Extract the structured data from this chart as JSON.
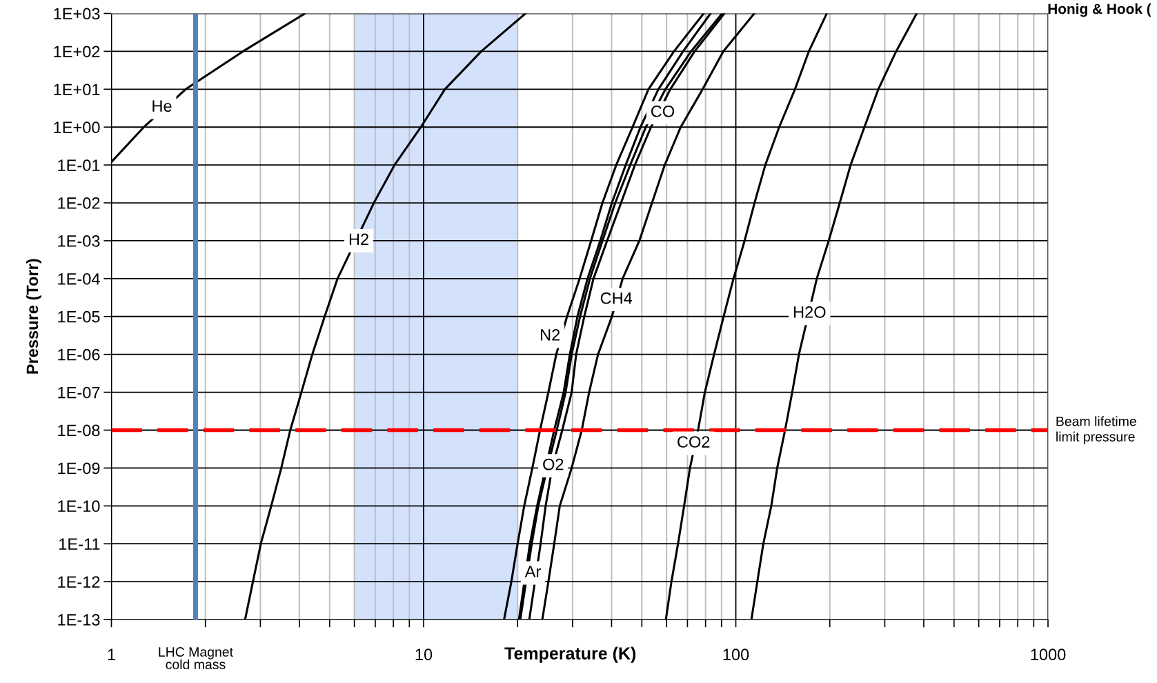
{
  "chart_data": {
    "type": "line",
    "log": "xy",
    "xlabel": "Temperature (K)",
    "ylabel": "Pressure (Torr)",
    "xlim": [
      1,
      1000
    ],
    "ylim": [
      1e-13,
      1000
    ],
    "xticks": [
      1,
      {
        "value": 2,
        "label": null
      },
      {
        "value": 3,
        "label": null
      },
      {
        "value": 4,
        "label": null
      },
      {
        "value": 5,
        "label": null
      },
      {
        "value": 6,
        "label": null
      },
      {
        "value": 7,
        "label": null
      },
      {
        "value": 8,
        "label": null
      },
      {
        "value": 9,
        "label": null
      },
      10,
      {
        "value": 20,
        "label": null
      },
      {
        "value": 30,
        "label": null
      },
      {
        "value": 40,
        "label": null
      },
      {
        "value": 50,
        "label": null
      },
      {
        "value": 60,
        "label": null
      },
      {
        "value": 70,
        "label": null
      },
      {
        "value": 80,
        "label": null
      },
      {
        "value": 90,
        "label": null
      },
      100,
      {
        "value": 200,
        "label": null
      },
      {
        "value": 300,
        "label": null
      },
      {
        "value": 400,
        "label": null
      },
      {
        "value": 500,
        "label": null
      },
      {
        "value": 600,
        "label": null
      },
      {
        "value": 700,
        "label": null
      },
      {
        "value": 800,
        "label": null
      },
      {
        "value": 900,
        "label": null
      },
      1000
    ],
    "yticks": [
      {
        "value": 1e-13,
        "label": "1E-13"
      },
      {
        "value": 1e-12,
        "label": "1E-12"
      },
      {
        "value": 1e-11,
        "label": "1E-11"
      },
      {
        "value": 1e-10,
        "label": "1E-10"
      },
      {
        "value": 1e-09,
        "label": "1E-09"
      },
      {
        "value": 1e-08,
        "label": "1E-08"
      },
      {
        "value": 1e-07,
        "label": "1E-07"
      },
      {
        "value": 1e-06,
        "label": "1E-06"
      },
      {
        "value": 1e-05,
        "label": "1E-05"
      },
      {
        "value": 0.0001,
        "label": "1E-04"
      },
      {
        "value": 0.001,
        "label": "1E-03"
      },
      {
        "value": 0.01,
        "label": "1E-02"
      },
      {
        "value": 0.1,
        "label": "1E-01"
      },
      {
        "value": 1,
        "label": "1E+00"
      },
      {
        "value": 10,
        "label": "1E+01"
      },
      {
        "value": 100,
        "label": "1E+02"
      },
      {
        "value": 1000,
        "label": "1E+03"
      }
    ],
    "grid": true,
    "legend": false,
    "marker": "none",
    "line_style": "solid",
    "series": [
      {
        "color": "#000000",
        "x": [
          1,
          1.27,
          1.73,
          2.64,
          4.17
        ],
        "values": [
          0.12,
          1,
          10,
          100,
          1000
        ]
      },
      {
        "color": "#000000",
        "x": [
          2.68,
          2.84,
          3.01,
          3.25,
          3.5,
          3.74,
          4.06,
          4.4,
          4.82,
          5.3,
          6.93,
          8.07,
          9.8,
          11.7,
          15.3,
          21.2
        ],
        "values": [
          1e-13,
          1e-12,
          1e-11,
          1e-10,
          1e-09,
          1e-08,
          1e-07,
          1e-06,
          1e-05,
          0.0001,
          0.01,
          0.1,
          1,
          10,
          100,
          1000
        ]
      },
      {
        "color": "#000000",
        "x": [
          18.1,
          19.1,
          20.0,
          21.0,
          22.3,
          23.6,
          25.1,
          26.6,
          28.8,
          31.6,
          34.4,
          37.4,
          41.4,
          46.7,
          52.5,
          63.4,
          78.9
        ],
        "values": [
          1e-13,
          1e-12,
          1e-11,
          1e-10,
          1e-09,
          1e-08,
          1e-07,
          1e-06,
          1e-05,
          0.0001,
          0.001,
          0.01,
          0.1,
          1,
          10,
          100,
          1000
        ]
      },
      {
        "color": "#000000",
        "x": [
          20.2,
          21.9,
          23.1,
          24.6,
          26.2,
          28.1,
          29.4,
          31.1,
          33.5,
          36.8,
          40.1,
          44.4,
          49.5,
          56.5,
          67.8,
          83.0
        ],
        "values": [
          1e-13,
          1e-11,
          1e-10,
          1e-09,
          1e-08,
          1e-07,
          1e-06,
          1e-05,
          0.0001,
          0.001,
          0.01,
          0.1,
          1,
          10,
          100,
          1000
        ]
      },
      {
        "color": "#000000",
        "x": [
          20.4,
          22.2,
          23.3,
          24.9,
          26.7,
          28.5,
          29.8,
          31.7,
          34.1,
          37.4,
          41.1,
          45.9,
          51.5,
          59.5,
          71.9,
          90.4
        ],
        "values": [
          1e-13,
          1e-11,
          1e-10,
          1e-09,
          1e-08,
          1e-07,
          1e-06,
          1e-05,
          0.0001,
          0.001,
          0.01,
          0.1,
          1,
          10,
          100,
          1000
        ]
      },
      {
        "color": "#000000",
        "x": [
          21.8,
          23.7,
          24.6,
          25.8,
          27.8,
          29.8,
          30.8,
          32.7,
          35.0,
          38.7,
          42.9,
          47.5,
          53.5,
          61.7,
          73.8,
          91.9
        ],
        "values": [
          1e-13,
          1e-11,
          1e-10,
          1e-09,
          1e-08,
          1e-07,
          1e-06,
          1e-05,
          0.0001,
          0.001,
          0.01,
          0.1,
          1,
          10,
          100,
          1000
        ]
      },
      {
        "color": "#000000",
        "x": [
          24.0,
          25.1,
          26.2,
          27.3,
          29.8,
          32.1,
          33.9,
          36.2,
          40.1,
          43.4,
          49.1,
          53.9,
          59.2,
          66.6,
          78.3,
          91.2,
          114.6
        ],
        "values": [
          1e-13,
          1e-12,
          1e-11,
          1e-10,
          1e-09,
          1e-08,
          1e-07,
          1e-06,
          1e-05,
          0.0001,
          0.001,
          0.01,
          0.1,
          1,
          10,
          100,
          1000
        ]
      },
      {
        "color": "#000000",
        "x": [
          59.7,
          62.2,
          65.3,
          68.3,
          71.3,
          75.7,
          79.6,
          85.2,
          91.4,
          98.3,
          106.7,
          114.8,
          124.3,
          137.7,
          154.7,
          171.4,
          195.6
        ],
        "values": [
          1e-13,
          1e-12,
          1e-11,
          1e-10,
          1e-09,
          1e-08,
          1e-07,
          1e-06,
          1e-05,
          0.0001,
          0.001,
          0.01,
          0.1,
          1,
          10,
          100,
          1000
        ]
      },
      {
        "color": "#000000",
        "x": [
          112.2,
          117.2,
          122.5,
          129.9,
          135.7,
          143.8,
          151.6,
          159.3,
          181.7,
          198.4,
          215.3,
          233.2,
          258.2,
          286.1,
          326.3,
          379.6
        ],
        "values": [
          1e-13,
          1e-12,
          1e-11,
          1e-10,
          1e-09,
          1e-08,
          1e-07,
          1e-06,
          0.0001,
          0.001,
          0.01,
          0.1,
          1,
          10,
          100,
          1000
        ]
      }
    ],
    "ref_lines": [
      {
        "axis": "y",
        "value": 1e-08,
        "label": "Beam lifetime\nlimit pressure",
        "color": "#ff0000",
        "line_style": "dashed"
      },
      {
        "axis": "x",
        "value": 1.86,
        "label": "LHC Magnet\ncold mass",
        "color": "#4f81bd",
        "line_style": "solid"
      }
    ],
    "bands": [
      {
        "axis": "x",
        "from": 6,
        "to": 20,
        "color": "#d3e1fb"
      }
    ],
    "annotations": [
      "Honig & Hook (",
      {
        "text": "He",
        "x": 1.45,
        "y": 3.3
      },
      {
        "text": "H2",
        "x": 6.2,
        "y": 0.001
      },
      {
        "text": "CO",
        "x": 58.3,
        "y": 2.4
      },
      {
        "text": "CH4",
        "x": 41.4,
        "y": 2.8e-05
      },
      {
        "text": "N2",
        "x": 25.4,
        "y": 3e-06
      },
      {
        "text": "O2",
        "x": 26.0,
        "y": 1.15e-09
      },
      {
        "text": "Ar",
        "x": 22.4,
        "y": 1.7e-12
      },
      {
        "text": "CO2",
        "x": 73.2,
        "y": 4.5e-09
      },
      {
        "text": "H2O",
        "x": 172.2,
        "y": 1.2e-05
      }
    ]
  }
}
